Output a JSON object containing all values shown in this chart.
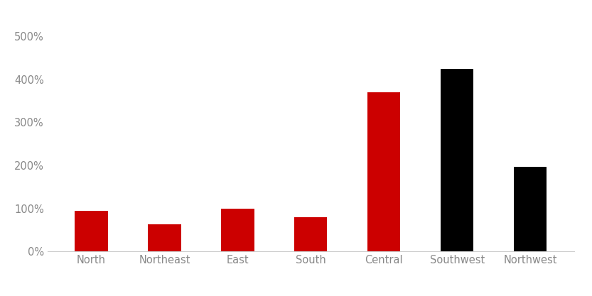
{
  "categories": [
    "North",
    "Northeast",
    "East",
    "South",
    "Central",
    "Southwest",
    "Northwest"
  ],
  "values": [
    0.95,
    0.63,
    1.0,
    0.8,
    3.7,
    4.25,
    1.97
  ],
  "bar_colors": [
    "#cc0000",
    "#cc0000",
    "#cc0000",
    "#cc0000",
    "#cc0000",
    "#000000",
    "#000000"
  ],
  "ylim": [
    0,
    5.5
  ],
  "yticks": [
    0,
    1,
    2,
    3,
    4,
    5
  ],
  "ytick_labels": [
    "0%",
    "100%",
    "200%",
    "300%",
    "400%",
    "500%"
  ],
  "background_color": "#ffffff",
  "bar_width": 0.45,
  "tick_color": "#aaaaaa",
  "label_color": "#888888",
  "font_size": 10.5
}
